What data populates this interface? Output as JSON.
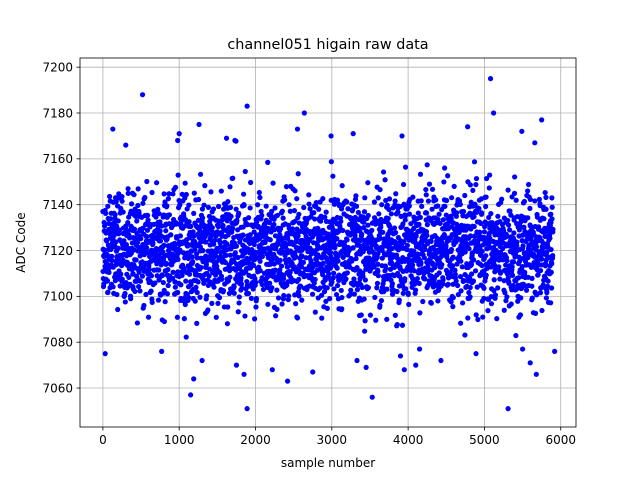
{
  "chart_data": {
    "type": "scatter",
    "title": "channel051 higain raw data",
    "xlabel": "sample number",
    "ylabel": "ADC Code",
    "xlim": [
      -300,
      6200
    ],
    "ylim": [
      7043,
      7204
    ],
    "xticks": [
      0,
      1000,
      2000,
      3000,
      4000,
      5000,
      6000
    ],
    "yticks": [
      7060,
      7080,
      7100,
      7120,
      7140,
      7160,
      7180,
      7200
    ],
    "grid": true,
    "marker_color": "#0000ff",
    "n_samples": 5900,
    "typical_range": [
      7095,
      7145
    ],
    "median": 7120,
    "points": [
      [
        520,
        7188
      ],
      [
        1890,
        7183
      ],
      [
        2640,
        7180
      ],
      [
        5080,
        7195
      ],
      [
        5120,
        7180
      ],
      [
        1260,
        7175
      ],
      [
        4780,
        7174
      ],
      [
        5750,
        7177
      ],
      [
        130,
        7173
      ],
      [
        2550,
        7173
      ],
      [
        3280,
        7171
      ],
      [
        1000,
        7171
      ],
      [
        980,
        7168
      ],
      [
        1620,
        7169
      ],
      [
        1730,
        7168
      ],
      [
        3920,
        7170
      ],
      [
        5490,
        7172
      ],
      [
        5660,
        7167
      ],
      [
        2990,
        7170
      ],
      [
        300,
        7166
      ],
      [
        1190,
        7064
      ],
      [
        1150,
        7057
      ],
      [
        1850,
        7066
      ],
      [
        1750,
        7070
      ],
      [
        1890,
        7051
      ],
      [
        2420,
        7063
      ],
      [
        2750,
        7067
      ],
      [
        3330,
        7072
      ],
      [
        3450,
        7069
      ],
      [
        3530,
        7056
      ],
      [
        3950,
        7068
      ],
      [
        4100,
        7070
      ],
      [
        5310,
        7051
      ],
      [
        5680,
        7066
      ],
      [
        5600,
        7071
      ],
      [
        5920,
        7076
      ],
      [
        5500,
        7077
      ],
      [
        30,
        7075
      ],
      [
        770,
        7076
      ],
      [
        1300,
        7072
      ],
      [
        2220,
        7068
      ],
      [
        3900,
        7074
      ],
      [
        4430,
        7072
      ],
      [
        4150,
        7077
      ],
      [
        4890,
        7075
      ]
    ]
  }
}
